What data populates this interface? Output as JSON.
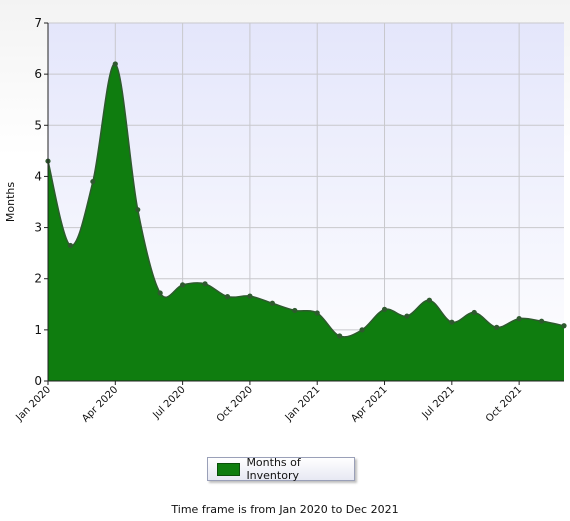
{
  "chart_data": {
    "type": "area",
    "ylabel": "Months",
    "xlabel": "",
    "ylim": [
      0,
      7
    ],
    "yticks": [
      "0",
      "1",
      "2",
      "3",
      "4",
      "5",
      "6",
      "7"
    ],
    "xticks": [
      "Jan 2020",
      "Apr 2020",
      "Jul 2020",
      "Oct 2020",
      "Jan 2021",
      "Apr 2021",
      "Jul 2021",
      "Oct 2021"
    ],
    "x": [
      "Jan 2020",
      "Feb 2020",
      "Mar 2020",
      "Apr 2020",
      "May 2020",
      "Jun 2020",
      "Jul 2020",
      "Aug 2020",
      "Sep 2020",
      "Oct 2020",
      "Nov 2020",
      "Dec 2020",
      "Jan 2021",
      "Feb 2021",
      "Mar 2021",
      "Apr 2021",
      "May 2021",
      "Jun 2021",
      "Jul 2021",
      "Aug 2021",
      "Sep 2021",
      "Oct 2021",
      "Nov 2021",
      "Dec 2021"
    ],
    "series": [
      {
        "name": "Months of Inventory",
        "values": [
          4.3,
          2.65,
          3.9,
          6.2,
          3.35,
          1.72,
          1.88,
          1.9,
          1.65,
          1.66,
          1.52,
          1.38,
          1.33,
          0.88,
          1.0,
          1.4,
          1.27,
          1.58,
          1.15,
          1.34,
          1.05,
          1.22,
          1.17,
          1.08
        ]
      }
    ],
    "grid": true,
    "legend": "bottom-center",
    "colors": {
      "fill": "#0f7d0f",
      "line": "#2f5a2f",
      "marker": "#2f5a2f",
      "plot_bg_top": "#e4e6fb",
      "plot_bg_bottom": "#ffffff"
    }
  },
  "legend": {
    "label": "Months of Inventory"
  },
  "footer": {
    "text": "Time frame is from Jan 2020 to Dec 2021"
  }
}
